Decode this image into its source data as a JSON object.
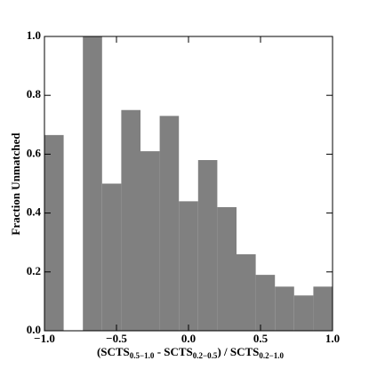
{
  "chart_data": {
    "type": "histogram",
    "xlabel": [
      "(SCTS",
      "0.5−1.0",
      " - SCTS",
      "0.2−0.5",
      ") / SCTS",
      "0.2−1.0"
    ],
    "ylabel": "Fraction Unmatched",
    "bins": [
      -1.0,
      -0.8667,
      -0.7333,
      -0.6,
      -0.4667,
      -0.3333,
      -0.2,
      -0.0667,
      0.0667,
      0.2,
      0.3333,
      0.4667,
      0.6,
      0.7333,
      0.8667,
      1.0
    ],
    "values": [
      0.665,
      0,
      1.0,
      0.5,
      0.75,
      0.61,
      0.73,
      0.44,
      0.58,
      0.42,
      0.26,
      0.19,
      0.15,
      0.12,
      0.15
    ],
    "color": "#808080",
    "xlim": [
      -1.0,
      1.0
    ],
    "xticks": [
      {
        "value": -1.0,
        "label": "−1.0"
      },
      {
        "value": -0.5,
        "label": "−0.5"
      },
      {
        "value": 0,
        "label": "0.0"
      },
      0.5,
      {
        "value": 1.0,
        "label": "1.0"
      }
    ],
    "ylim": [
      0,
      1.0
    ],
    "yticks": [
      {
        "value": 0,
        "label": "0.0"
      },
      0.2,
      0.4,
      0.6,
      0.8,
      {
        "value": 1.0,
        "label": "1.0"
      }
    ]
  }
}
